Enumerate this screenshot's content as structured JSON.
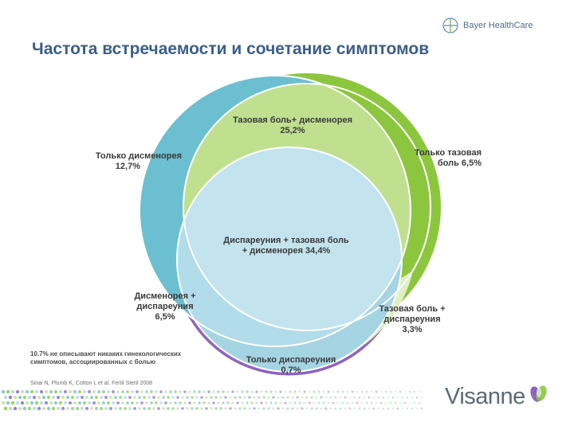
{
  "logo": {
    "text": "Bayer HealthCare"
  },
  "title": "Частота встречаемости и сочетание симптомов",
  "regions": {
    "pelvic_dysmenorrhea": {
      "line1": "Тазовая боль+ дисменорея",
      "line2": "25,2%"
    },
    "dysmenorrhea_only": {
      "line1": "Только дисменорея",
      "line2": "12,7%"
    },
    "pelvic_only": {
      "line1": "Только тазовая",
      "line2": "боль 6,5%"
    },
    "all_three": {
      "line1": "Диспареуния  + тазовая боль",
      "line2": "+ дисменорея 34,4%"
    },
    "dysmenorrhea_dyspareunia": {
      "line1": "Дисменорея +",
      "line2": "диспареуния",
      "line3": "6,5%"
    },
    "pelvic_dyspareunia": {
      "line1": "Тазовая боль +",
      "line2": "диспареуния",
      "line3": "3,3%"
    },
    "dyspareunia_only": {
      "line1": "Только диспареуния",
      "line2": "0,7%"
    }
  },
  "note": {
    "line1": "10.7% не описывают никаких гинекологических",
    "line2": "симптомов, ассоциированных с болью"
  },
  "source": "Sinai N, Plumb K, Cotton L et al. Fertil Steril 2008",
  "brand": {
    "text": "Visanne"
  },
  "colors": {
    "title": "#3a5f8b",
    "dysmenorrhea_circle": "#6cbfd0",
    "pelvic_pain_circle": "#8cc63f",
    "dyspareunia_circle": "#a5d4e3",
    "dyspareunia_edge": "#8e63c2"
  }
}
